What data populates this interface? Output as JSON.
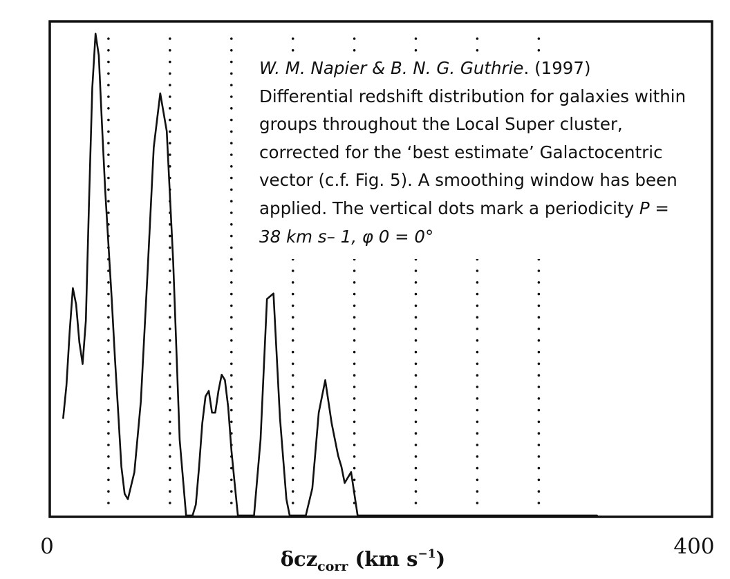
{
  "chart_data": {
    "type": "line",
    "title": "",
    "xlabel": "δcz_corr (km s⁻¹)",
    "xlabel_parts": {
      "main": "δcz",
      "sub": "corr",
      "units_pre": " (km s",
      "units_sup": "−1",
      "units_post": ")"
    },
    "ylabel": "",
    "xlim": [
      0,
      400
    ],
    "x_tick_labels": [
      "0",
      "400"
    ],
    "grid": false,
    "legend": "none",
    "periodicity_markers": [
      38,
      76,
      114,
      152,
      190,
      228,
      266,
      304
    ],
    "series": [
      {
        "x": [
          10,
          12,
          14,
          16,
          18,
          20,
          22,
          24,
          26,
          28,
          30,
          32,
          34,
          36,
          38,
          40,
          42,
          44,
          46,
          48,
          50,
          54,
          58,
          62,
          66,
          70,
          74,
          78,
          82,
          86,
          90,
          92,
          94,
          96,
          98,
          100,
          102,
          104,
          106,
          108,
          110,
          112,
          114,
          116,
          118,
          120,
          124,
          128,
          132,
          136,
          140,
          144,
          148,
          150,
          152,
          154,
          156,
          158,
          160,
          164,
          168,
          172,
          176,
          180,
          182,
          184,
          186,
          188,
          190,
          192,
          194,
          196,
          200,
          204,
          208,
          212,
          216,
          220,
          232,
          236,
          238,
          240,
          242,
          244,
          246,
          248,
          250,
          256,
          264,
          270,
          274,
          276,
          278,
          280,
          282,
          284,
          286,
          288,
          290,
          296,
          340
        ],
        "y": [
          0.18,
          0.24,
          0.34,
          0.42,
          0.39,
          0.32,
          0.28,
          0.36,
          0.58,
          0.79,
          0.89,
          0.85,
          0.72,
          0.6,
          0.5,
          0.4,
          0.29,
          0.19,
          0.09,
          0.04,
          0.03,
          0.08,
          0.21,
          0.44,
          0.68,
          0.78,
          0.71,
          0.47,
          0.14,
          0.0,
          0.0,
          0.02,
          0.09,
          0.17,
          0.22,
          0.23,
          0.19,
          0.19,
          0.23,
          0.26,
          0.25,
          0.2,
          0.12,
          0.06,
          0.0,
          0.0,
          0.0,
          0.0,
          0.14,
          0.4,
          0.41,
          0.18,
          0.03,
          0.0,
          0.0,
          0.0,
          0.0,
          0.0,
          0.0,
          0.05,
          0.19,
          0.25,
          0.17,
          0.11,
          0.09,
          0.06,
          0.07,
          0.08,
          0.04,
          0.0,
          0.0,
          0.0,
          0.0,
          0.0,
          0.0,
          0.0,
          0.0,
          0.0,
          0.0,
          0.0,
          0.0,
          0.0,
          0.0,
          0.0,
          0.0,
          0.0,
          0.0,
          0.0,
          0.0,
          0.0,
          0.0,
          0.0,
          0.0,
          0.0,
          0.0,
          0.0,
          0.0,
          0.0,
          0.0,
          0.0,
          0.0
        ]
      }
    ],
    "annotation": {
      "authors": "W. M. Napier & B. N. G. Guthrie",
      "year_text": ". (1997)",
      "body": "Differential redshift distribution for galaxies within groups throughout the Local Super cluster, corrected for the ‘best estimate’ Galactocentric vector (c.f. Fig. 5). A smoothing window has been applied. The vertical dots mark a periodicity ",
      "formula": "P = 38 km s– 1, φ 0 = 0°"
    }
  }
}
